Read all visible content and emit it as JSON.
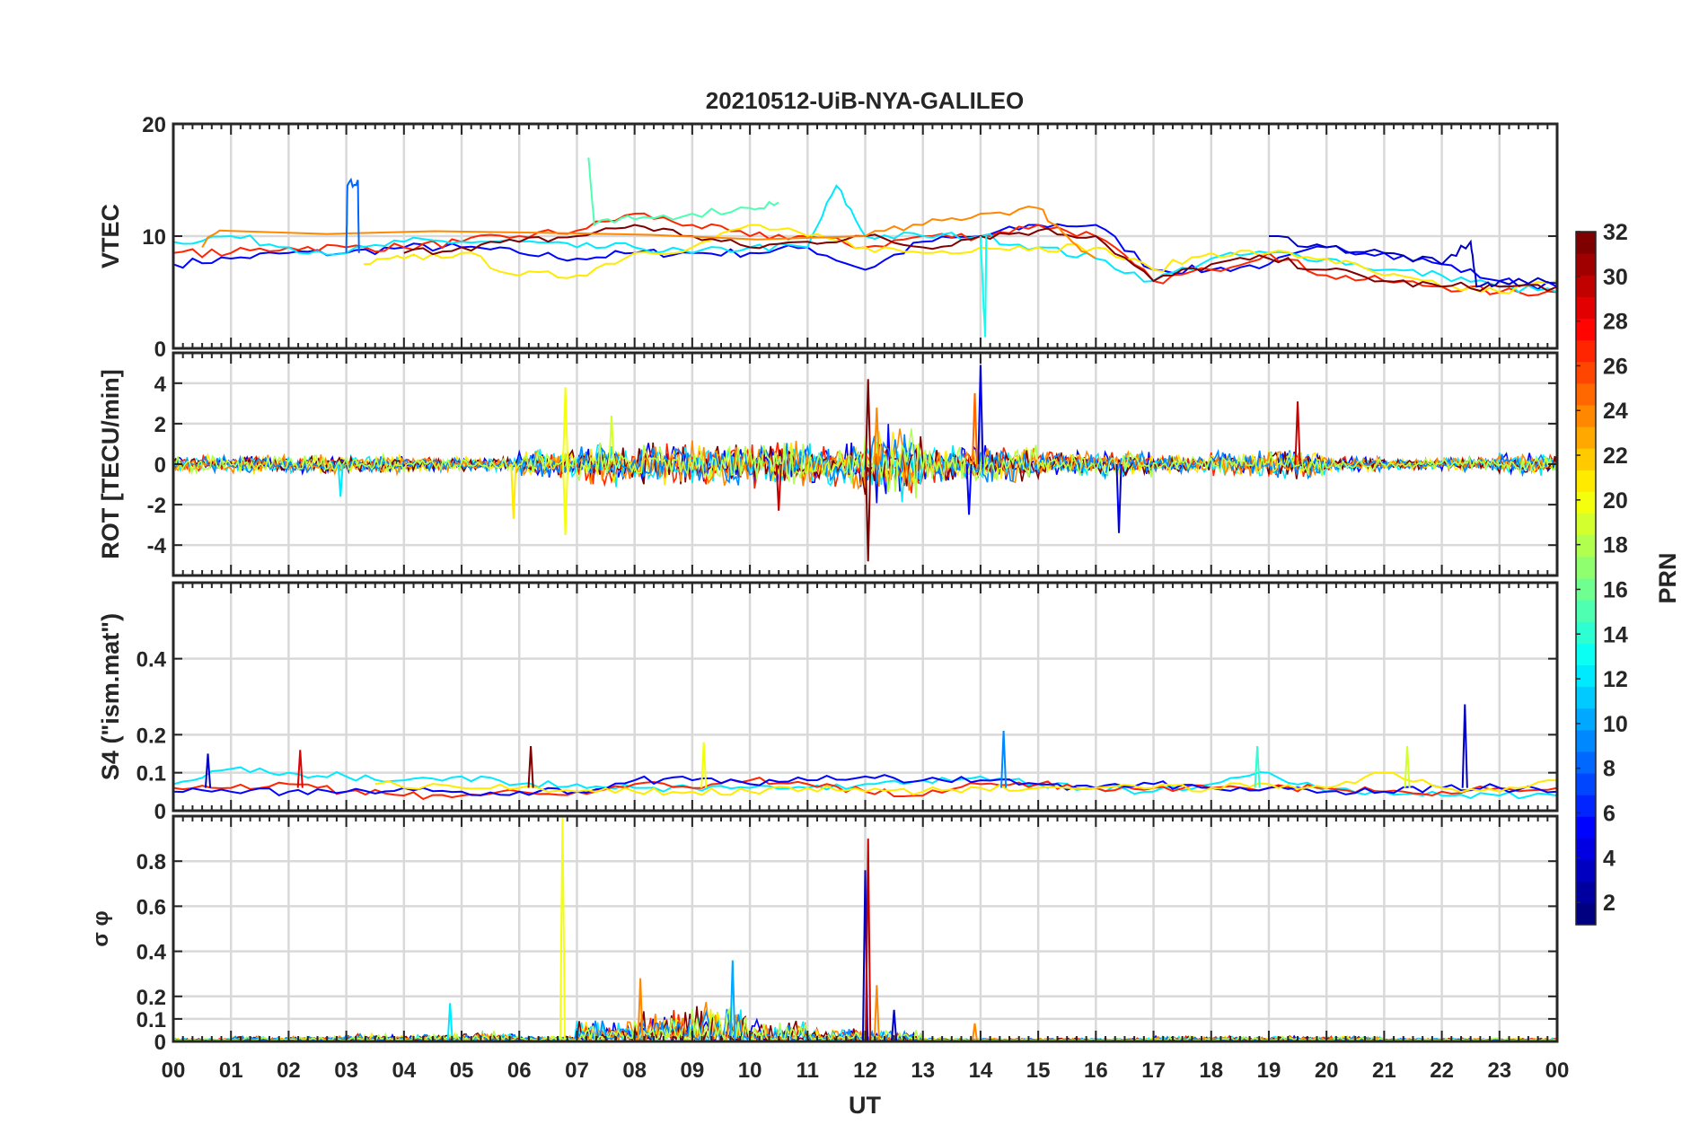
{
  "chart_data": {
    "type": "line",
    "title": "20210512-UiB-NYA-GALILEO",
    "xlabel": "UT",
    "xlim": [
      0,
      24
    ],
    "xticks": [
      "00",
      "01",
      "02",
      "03",
      "04",
      "05",
      "06",
      "07",
      "08",
      "09",
      "10",
      "11",
      "12",
      "13",
      "14",
      "15",
      "16",
      "17",
      "18",
      "19",
      "20",
      "21",
      "22",
      "23",
      "00"
    ],
    "grid": true,
    "colorbar": {
      "label": "PRN",
      "range": [
        1,
        32
      ],
      "colormap": "jet",
      "ticks": [
        "2",
        "4",
        "6",
        "8",
        "10",
        "12",
        "14",
        "16",
        "18",
        "20",
        "22",
        "24",
        "26",
        "28",
        "30",
        "32"
      ]
    },
    "panels": [
      {
        "id": "vtec",
        "ylabel": "VTEC",
        "ylim": [
          0,
          20
        ],
        "yticks": [
          {
            "v": 0,
            "t": "0"
          },
          {
            "v": 10,
            "t": "10"
          },
          {
            "v": 20,
            "t": "20"
          }
        ],
        "series": [
          {
            "prn": 5,
            "x": [
              0,
              1,
              2,
              3,
              4,
              5,
              6,
              7,
              8,
              9,
              10,
              11,
              12,
              13,
              14,
              15,
              16,
              17,
              18,
              19,
              20,
              21,
              22,
              23,
              24
            ],
            "y": [
              7.5,
              8,
              8.5,
              8.5,
              9,
              9,
              8.5,
              8,
              8.5,
              8.5,
              8.5,
              9,
              7,
              9.5,
              10,
              11,
              11,
              7,
              7,
              7.5,
              9,
              8.5,
              7.5,
              6,
              5.5
            ]
          },
          {
            "prn": 27,
            "x": [
              0,
              1,
              2,
              3,
              4,
              5,
              6,
              7,
              8,
              9,
              10,
              11,
              12,
              13,
              14,
              15,
              16,
              17,
              18,
              19,
              20,
              21,
              22,
              23,
              24
            ],
            "y": [
              8.5,
              8.5,
              9,
              9,
              9,
              9.5,
              10,
              10.5,
              12,
              11,
              10,
              10,
              9,
              10,
              10,
              11,
              10,
              6,
              7,
              8.5,
              6.5,
              6,
              5.5,
              5,
              5
            ]
          },
          {
            "prn": 12,
            "x": [
              0,
              1,
              2,
              3,
              4,
              5,
              6,
              7,
              8,
              9,
              10,
              11,
              11.5,
              12,
              13,
              14,
              15,
              16,
              17,
              18,
              19,
              20,
              21,
              22,
              23,
              24
            ],
            "y": [
              9.5,
              10,
              9,
              8.5,
              9.5,
              9.5,
              9.5,
              9,
              9,
              8.5,
              9,
              9,
              14.5,
              10,
              10,
              10,
              9,
              8,
              6,
              8,
              8.5,
              8,
              7,
              6.5,
              5.5,
              5
            ]
          },
          {
            "prn": 21,
            "x": [
              3.3,
              4,
              5,
              6,
              7,
              8,
              9,
              10,
              11,
              12,
              13,
              14,
              15,
              16,
              17,
              18,
              19,
              20,
              21,
              22,
              23,
              24
            ],
            "y": [
              7.5,
              8,
              8.5,
              6.5,
              6.5,
              8.5,
              9,
              11,
              10,
              9,
              8.5,
              9,
              9,
              9,
              7,
              8.5,
              8.5,
              8,
              6.5,
              5.5,
              5,
              6
            ]
          },
          {
            "prn": 32,
            "x": [
              4,
              5,
              6,
              7,
              8,
              9,
              10,
              11,
              12,
              13,
              14,
              15,
              16,
              17,
              18,
              19,
              20,
              21,
              22,
              23,
              24
            ],
            "y": [
              8.5,
              9,
              9.5,
              10,
              11,
              10,
              9,
              9.5,
              10,
              9,
              10,
              10.5,
              10,
              6,
              7.5,
              8,
              7,
              6,
              5.5,
              5.5,
              5.5
            ]
          },
          {
            "prn": 24,
            "x": [
              0.5,
              0.8,
              12,
              13,
              14,
              15,
              15.5,
              16
            ],
            "y": [
              9,
              10.5,
              10,
              11,
              12,
              12.5,
              10,
              8
            ]
          },
          {
            "prn": 15,
            "x": [
              7.2,
              7.3,
              8,
              9,
              10,
              10.5
            ],
            "y": [
              17,
              11,
              11.5,
              12,
              12.5,
              13
            ]
          },
          {
            "prn": 8,
            "x": [
              3,
              3.02,
              3.2,
              3.22
            ],
            "y": [
              8.5,
              14.5,
              15,
              8.5
            ]
          },
          {
            "prn": 3,
            "x": [
              19,
              20,
              21,
              22,
              22.5,
              22.6,
              23,
              24
            ],
            "y": [
              10,
              9,
              8.5,
              7.5,
              9.5,
              5.5,
              6,
              5.8
            ]
          },
          {
            "prn": 13,
            "x": [
              14,
              14.08,
              14.1
            ],
            "y": [
              10,
              1,
              10
            ]
          }
        ]
      },
      {
        "id": "rot",
        "ylabel": "ROT [TECU/min]",
        "ylim": [
          -5.5,
          5.5
        ],
        "yticks": [
          {
            "v": -4,
            "t": "-4"
          },
          {
            "v": -2,
            "t": "-2"
          },
          {
            "v": 0,
            "t": "0"
          },
          {
            "v": 2,
            "t": "2"
          },
          {
            "v": 4,
            "t": "4"
          }
        ],
        "envelope_hourly": [
          0.5,
          0.5,
          0.5,
          0.5,
          0.4,
          0.4,
          0.8,
          1.2,
          1.2,
          1.2,
          1.3,
          1.3,
          2.0,
          1.0,
          1.0,
          0.7,
          0.7,
          0.5,
          0.7,
          0.8,
          0.4,
          0.3,
          0.4,
          0.6
        ],
        "spikes": [
          {
            "prn": 20,
            "x": 6.8,
            "y": 3.8
          },
          {
            "prn": 20,
            "x": 6.8,
            "y": -3.5
          },
          {
            "prn": 21,
            "x": 5.9,
            "y": -2.7
          },
          {
            "prn": 32,
            "x": 12.05,
            "y": 4.2
          },
          {
            "prn": 32,
            "x": 12.05,
            "y": -4.8
          },
          {
            "prn": 24,
            "x": 12.2,
            "y": 2.8
          },
          {
            "prn": 4,
            "x": 14,
            "y": 4.9
          },
          {
            "prn": 25,
            "x": 13.9,
            "y": 3.5
          },
          {
            "prn": 5,
            "x": 13.8,
            "y": -2.5
          },
          {
            "prn": 4,
            "x": 16.4,
            "y": -3.4
          },
          {
            "prn": 30,
            "x": 19.5,
            "y": 3.1
          },
          {
            "prn": 30,
            "x": 10.5,
            "y": -2.3
          },
          {
            "prn": 12,
            "x": 2.9,
            "y": -1.6
          },
          {
            "prn": 19,
            "x": 7.6,
            "y": 2.4
          }
        ]
      },
      {
        "id": "s4",
        "ylabel": "S4 (\"ism.mat\")",
        "ylim": [
          0,
          0.6
        ],
        "yticks": [
          {
            "v": 0,
            "t": "0"
          },
          {
            "v": 0.1,
            "t": "0.1"
          },
          {
            "v": 0.2,
            "t": "0.2"
          },
          {
            "v": 0.4,
            "t": "0.4"
          }
        ],
        "series": [
          {
            "prn": 12,
            "x": [
              0,
              1,
              2,
              3,
              4,
              5,
              6,
              7,
              8,
              9,
              10,
              11,
              12,
              13,
              14,
              15,
              16,
              17,
              18,
              19,
              20,
              21,
              22,
              23,
              24
            ],
            "y": [
              0.07,
              0.11,
              0.1,
              0.09,
              0.08,
              0.09,
              0.07,
              0.07,
              0.06,
              0.06,
              0.06,
              0.06,
              0.07,
              0.08,
              0.09,
              0.07,
              0.06,
              0.05,
              0.07,
              0.1,
              0.05,
              0.05,
              0.04,
              0.04,
              0.04
            ]
          },
          {
            "prn": 27,
            "x": [
              0,
              1,
              2,
              3,
              4,
              5,
              6,
              7,
              8,
              9,
              10,
              11,
              12,
              13,
              14,
              15,
              16,
              17,
              18,
              19,
              20,
              21,
              22,
              23,
              24
            ],
            "y": [
              0.06,
              0.06,
              0.07,
              0.05,
              0.04,
              0.04,
              0.05,
              0.05,
              0.07,
              0.06,
              0.08,
              0.07,
              0.05,
              0.04,
              0.07,
              0.07,
              0.06,
              0.06,
              0.06,
              0.06,
              0.06,
              0.05,
              0.05,
              0.06,
              0.06
            ]
          },
          {
            "prn": 5,
            "x": [
              0,
              1,
              2,
              3,
              4,
              5,
              6,
              7,
              8,
              9,
              10,
              11,
              12,
              13,
              14,
              15,
              16,
              17,
              18,
              19,
              20,
              21,
              22,
              23,
              24
            ],
            "y": [
              0.05,
              0.05,
              0.05,
              0.05,
              0.06,
              0.05,
              0.05,
              0.05,
              0.08,
              0.08,
              0.07,
              0.08,
              0.09,
              0.08,
              0.08,
              0.07,
              0.06,
              0.07,
              0.06,
              0.06,
              0.05,
              0.05,
              0.06,
              0.06,
              0.05
            ]
          },
          {
            "prn": 21,
            "x": [
              3.5,
              5,
              6,
              7,
              8,
              9,
              10,
              11,
              12,
              13,
              14,
              15,
              16,
              17,
              18,
              19,
              20,
              21,
              22,
              23,
              24
            ],
            "y": [
              0.07,
              0.06,
              0.06,
              0.05,
              0.05,
              0.05,
              0.05,
              0.06,
              0.05,
              0.05,
              0.06,
              0.06,
              0.06,
              0.06,
              0.06,
              0.07,
              0.06,
              0.1,
              0.06,
              0.05,
              0.08
            ]
          }
        ],
        "spikes": [
          {
            "prn": 32,
            "x": 6.2,
            "y": 0.17
          },
          {
            "prn": 29,
            "x": 2.2,
            "y": 0.16
          },
          {
            "prn": 20,
            "x": 9.2,
            "y": 0.18
          },
          {
            "prn": 9,
            "x": 14.4,
            "y": 0.21
          },
          {
            "prn": 3,
            "x": 22.4,
            "y": 0.28
          },
          {
            "prn": 19,
            "x": 21.4,
            "y": 0.17
          },
          {
            "prn": 14,
            "x": 18.8,
            "y": 0.17
          },
          {
            "prn": 3,
            "x": 0.6,
            "y": 0.15
          }
        ]
      },
      {
        "id": "sigma",
        "ylabel": "σ φ",
        "ylim": [
          0,
          1.0
        ],
        "yticks": [
          {
            "v": 0,
            "t": "0"
          },
          {
            "v": 0.1,
            "t": "0.1"
          },
          {
            "v": 0.2,
            "t": "0.2"
          },
          {
            "v": 0.4,
            "t": "0.4"
          },
          {
            "v": 0.6,
            "t": "0.6"
          },
          {
            "v": 0.8,
            "t": "0.8"
          }
        ],
        "envelope_hourly": [
          0.01,
          0.02,
          0.02,
          0.03,
          0.03,
          0.04,
          0.02,
          0.1,
          0.15,
          0.18,
          0.1,
          0.06,
          0.05,
          0.01,
          0.01,
          0.01,
          0.01,
          0.02,
          0.02,
          0.02,
          0.02,
          0.01,
          0.01,
          0.01
        ],
        "spikes": [
          {
            "prn": 20,
            "x": 6.75,
            "y": 1.0
          },
          {
            "prn": 3,
            "x": 12.0,
            "y": 0.76
          },
          {
            "prn": 30,
            "x": 12.05,
            "y": 0.9
          },
          {
            "prn": 10,
            "x": 9.7,
            "y": 0.36
          },
          {
            "prn": 24,
            "x": 8.1,
            "y": 0.28
          },
          {
            "prn": 12,
            "x": 4.8,
            "y": 0.17
          },
          {
            "prn": 24,
            "x": 12.2,
            "y": 0.25
          },
          {
            "prn": 3,
            "x": 12.5,
            "y": 0.14
          },
          {
            "prn": 24,
            "x": 13.9,
            "y": 0.08
          }
        ]
      }
    ]
  }
}
